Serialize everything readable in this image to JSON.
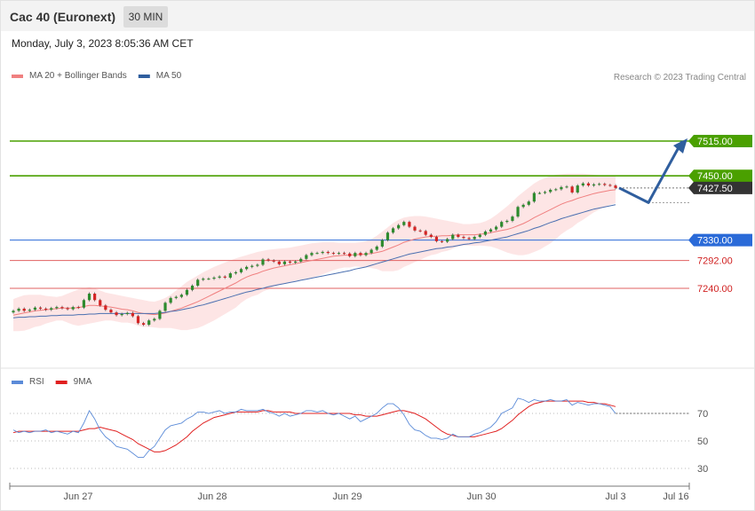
{
  "header": {
    "title": "Cac 40 (Euronext)",
    "timeframe": "30 MIN",
    "datetime": "Monday, July 3, 2023 8:05:36 AM CET"
  },
  "chart_data": [
    {
      "type": "candlestick",
      "legend": [
        {
          "label": "MA 20 + Bollinger Bands",
          "color": "#f08080"
        },
        {
          "label": "MA 50",
          "color": "#2f5e9e"
        }
      ],
      "copyright": "Research © 2023 Trading Central",
      "levels": [
        {
          "label": "7515.00",
          "value": 7515,
          "kind": "target",
          "color": "#4aa000"
        },
        {
          "label": "7450.00",
          "value": 7450,
          "kind": "target",
          "color": "#4aa000"
        },
        {
          "label": "7427.50",
          "value": 7427.5,
          "kind": "last",
          "color": "#333333"
        },
        {
          "label": "7330.00",
          "value": 7330,
          "kind": "pivot",
          "color": "#2a6ad8"
        },
        {
          "label": "7292.00",
          "value": 7292,
          "kind": "support",
          "color": "#d02020"
        },
        {
          "label": "7240.00",
          "value": 7240,
          "kind": "support",
          "color": "#d02020"
        }
      ],
      "x_ticks": [
        "Jun 27",
        "Jun 28",
        "Jun 29",
        "Jun 30",
        "Jul 3",
        "Jul 16"
      ],
      "close": [
        7198,
        7202,
        7198,
        7200,
        7204,
        7202,
        7200,
        7203,
        7205,
        7203,
        7201,
        7205,
        7204,
        7218,
        7230,
        7218,
        7208,
        7200,
        7195,
        7190,
        7192,
        7194,
        7188,
        7175,
        7172,
        7180,
        7183,
        7198,
        7213,
        7222,
        7224,
        7228,
        7237,
        7245,
        7256,
        7258,
        7258,
        7260,
        7262,
        7260,
        7268,
        7270,
        7276,
        7280,
        7282,
        7284,
        7294,
        7292,
        7290,
        7285,
        7290,
        7288,
        7290,
        7295,
        7302,
        7306,
        7306,
        7308,
        7306,
        7305,
        7306,
        7305,
        7300,
        7306,
        7302,
        7306,
        7312,
        7318,
        7330,
        7344,
        7352,
        7358,
        7364,
        7355,
        7348,
        7347,
        7340,
        7336,
        7328,
        7327,
        7332,
        7340,
        7336,
        7334,
        7332,
        7336,
        7340,
        7346,
        7350,
        7355,
        7364,
        7366,
        7374,
        7392,
        7396,
        7402,
        7418,
        7418,
        7420,
        7424,
        7425,
        7429,
        7430,
        7419,
        7432,
        7436,
        7432,
        7434,
        7435,
        7433,
        7432,
        7427.5
      ],
      "ma20": [
        7190,
        7192,
        7194,
        7196,
        7198,
        7199,
        7200,
        7201,
        7202,
        7203,
        7203,
        7203,
        7204,
        7206,
        7208,
        7208,
        7207,
        7206,
        7205,
        7203,
        7201,
        7200,
        7198,
        7195,
        7193,
        7192,
        7191,
        7192,
        7194,
        7197,
        7200,
        7203,
        7207,
        7211,
        7215,
        7220,
        7225,
        7230,
        7235,
        7240,
        7245,
        7250,
        7256,
        7261,
        7265,
        7268,
        7272,
        7275,
        7278,
        7280,
        7282,
        7284,
        7286,
        7288,
        7290,
        7292,
        7294,
        7296,
        7298,
        7300,
        7301,
        7302,
        7302,
        7303,
        7303,
        7304,
        7305,
        7307,
        7309,
        7313,
        7317,
        7321,
        7326,
        7329,
        7332,
        7334,
        7336,
        7337,
        7337,
        7338,
        7338,
        7339,
        7340,
        7340,
        7340,
        7340,
        7341,
        7342,
        7344,
        7346,
        7348,
        7350,
        7353,
        7357,
        7361,
        7366,
        7372,
        7377,
        7382,
        7387,
        7392,
        7397,
        7401,
        7404,
        7408,
        7411,
        7414,
        7417,
        7419,
        7421,
        7423,
        7424
      ],
      "bb_upper": [
        7220,
        7224,
        7227,
        7228,
        7228,
        7228,
        7226,
        7225,
        7224,
        7226,
        7230,
        7234,
        7238,
        7240,
        7242,
        7240,
        7236,
        7232,
        7230,
        7228,
        7226,
        7224,
        7222,
        7220,
        7218,
        7216,
        7215,
        7218,
        7222,
        7228,
        7236,
        7244,
        7252,
        7258,
        7264,
        7270,
        7275,
        7280,
        7284,
        7288,
        7292,
        7296,
        7299,
        7302,
        7305,
        7308,
        7310,
        7312,
        7313,
        7314,
        7315,
        7316,
        7318,
        7320,
        7322,
        7324,
        7325,
        7326,
        7326,
        7326,
        7325,
        7325,
        7325,
        7325,
        7326,
        7328,
        7332,
        7338,
        7346,
        7354,
        7362,
        7368,
        7372,
        7374,
        7375,
        7375,
        7374,
        7372,
        7370,
        7368,
        7366,
        7364,
        7362,
        7360,
        7360,
        7361,
        7362,
        7365,
        7370,
        7377,
        7385,
        7393,
        7402,
        7412,
        7420,
        7428,
        7436,
        7442,
        7446,
        7450,
        7452,
        7453,
        7454,
        7454,
        7454,
        7454,
        7453,
        7452,
        7451,
        7450,
        7450,
        7449
      ],
      "bb_lower": [
        7160,
        7160,
        7161,
        7164,
        7168,
        7170,
        7174,
        7177,
        7180,
        7180,
        7176,
        7172,
        7170,
        7172,
        7174,
        7176,
        7178,
        7180,
        7180,
        7178,
        7176,
        7176,
        7174,
        7170,
        7168,
        7168,
        7167,
        7166,
        7166,
        7166,
        7164,
        7162,
        7162,
        7164,
        7166,
        7170,
        7175,
        7180,
        7186,
        7192,
        7198,
        7204,
        7213,
        7220,
        7225,
        7228,
        7234,
        7238,
        7243,
        7246,
        7249,
        7252,
        7254,
        7256,
        7258,
        7260,
        7263,
        7266,
        7270,
        7274,
        7277,
        7279,
        7279,
        7281,
        7280,
        7280,
        7278,
        7276,
        7272,
        7272,
        7272,
        7274,
        7280,
        7284,
        7289,
        7293,
        7298,
        7302,
        7304,
        7308,
        7310,
        7314,
        7318,
        7320,
        7320,
        7319,
        7320,
        7319,
        7318,
        7315,
        7311,
        7307,
        7304,
        7302,
        7302,
        7304,
        7308,
        7312,
        7318,
        7324,
        7332,
        7341,
        7348,
        7354,
        7362,
        7368,
        7375,
        7382,
        7387,
        7392,
        7396,
        7399
      ],
      "ma50": [
        7185,
        7186,
        7186,
        7187,
        7187,
        7188,
        7188,
        7189,
        7189,
        7190,
        7190,
        7190,
        7191,
        7191,
        7192,
        7192,
        7193,
        7193,
        7193,
        7193,
        7193,
        7193,
        7193,
        7193,
        7193,
        7193,
        7193,
        7194,
        7195,
        7197,
        7198,
        7200,
        7202,
        7204,
        7207,
        7209,
        7212,
        7215,
        7218,
        7221,
        7224,
        7227,
        7230,
        7233,
        7235,
        7238,
        7240,
        7243,
        7245,
        7247,
        7249,
        7251,
        7253,
        7255,
        7257,
        7259,
        7261,
        7263,
        7265,
        7267,
        7269,
        7271,
        7273,
        7276,
        7278,
        7280,
        7283,
        7286,
        7289,
        7292,
        7295,
        7298,
        7301,
        7304,
        7306,
        7308,
        7310,
        7312,
        7314,
        7315,
        7317,
        7318,
        7320,
        7322,
        7323,
        7325,
        7326,
        7328,
        7330,
        7332,
        7334,
        7336,
        7339,
        7342,
        7345,
        7348,
        7352,
        7355,
        7359,
        7363,
        7366,
        7370,
        7373,
        7376,
        7379,
        7382,
        7385,
        7388,
        7390,
        7392,
        7394,
        7396
      ],
      "forecast_path": [
        7427.5,
        7400,
        7515
      ]
    },
    {
      "type": "line",
      "legend": [
        {
          "label": "RSI",
          "color": "#5b8bd8"
        },
        {
          "label": "9MA",
          "color": "#e02020"
        }
      ],
      "y_ticks": [
        "70",
        "50",
        "30"
      ],
      "ylim": [
        20,
        80
      ],
      "rsi": [
        58,
        56,
        57,
        56,
        57,
        57,
        58,
        56,
        57,
        56,
        55,
        57,
        56,
        63,
        72,
        66,
        58,
        53,
        50,
        46,
        45,
        44,
        41,
        38,
        38,
        43,
        46,
        52,
        58,
        61,
        62,
        63,
        66,
        68,
        71,
        71,
        70,
        71,
        72,
        70,
        71,
        71,
        73,
        72,
        72,
        72,
        73,
        71,
        70,
        68,
        70,
        68,
        69,
        70,
        72,
        72,
        71,
        72,
        70,
        69,
        70,
        68,
        66,
        68,
        64,
        66,
        68,
        70,
        74,
        77,
        77,
        74,
        69,
        62,
        58,
        57,
        54,
        52,
        52,
        51,
        52,
        55,
        53,
        53,
        53,
        55,
        56,
        58,
        60,
        64,
        70,
        72,
        74,
        81,
        80,
        78,
        80,
        79,
        79,
        80,
        79,
        79,
        80,
        76,
        78,
        77,
        76,
        77,
        77,
        76,
        75,
        70
      ],
      "ma9": [
        56,
        57,
        57,
        57,
        57,
        57,
        57,
        57,
        57,
        57,
        57,
        57,
        57,
        58,
        59,
        59,
        60,
        59,
        58,
        57,
        55,
        53,
        51,
        48,
        46,
        44,
        42,
        42,
        43,
        45,
        47,
        50,
        53,
        57,
        60,
        63,
        65,
        67,
        68,
        69,
        70,
        71,
        71,
        71,
        71,
        71,
        72,
        72,
        71,
        71,
        71,
        71,
        70,
        70,
        70,
        70,
        70,
        70,
        70,
        70,
        70,
        70,
        70,
        69,
        69,
        68,
        68,
        68,
        69,
        70,
        71,
        72,
        72,
        71,
        70,
        68,
        66,
        63,
        60,
        57,
        55,
        54,
        53,
        53,
        53,
        53,
        54,
        55,
        56,
        57,
        59,
        62,
        65,
        69,
        72,
        75,
        77,
        78,
        79,
        79,
        79,
        79,
        79,
        79,
        79,
        79,
        78,
        78,
        77,
        77,
        76,
        75
      ]
    }
  ]
}
